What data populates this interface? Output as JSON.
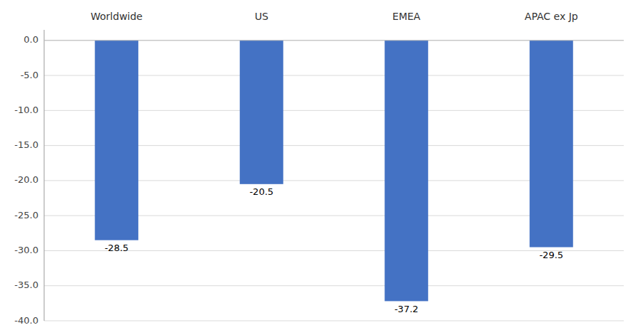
{
  "chart_data": {
    "type": "bar",
    "categories": [
      "Worldwide",
      "US",
      "EMEA",
      "APAC ex Jp"
    ],
    "values": [
      -28.5,
      -20.5,
      -37.2,
      -29.5
    ],
    "color": "#4472C4",
    "ylim": [
      -40.0,
      1.5
    ],
    "yticks": [
      {
        "value": 0.0,
        "label": "0.0"
      },
      {
        "value": -5.0,
        "label": "-5.0"
      },
      {
        "value": -10.0,
        "label": "-10.0"
      },
      {
        "value": -15.0,
        "label": "-15.0"
      },
      {
        "value": -20.0,
        "label": "-20.0"
      },
      {
        "value": -25.0,
        "label": "-25.0"
      },
      {
        "value": -30.0,
        "label": "-30.0"
      },
      {
        "value": -35.0,
        "label": "-35.0"
      },
      {
        "value": -40.0,
        "label": "-40.0"
      }
    ],
    "grid": true,
    "data_labels": true
  }
}
